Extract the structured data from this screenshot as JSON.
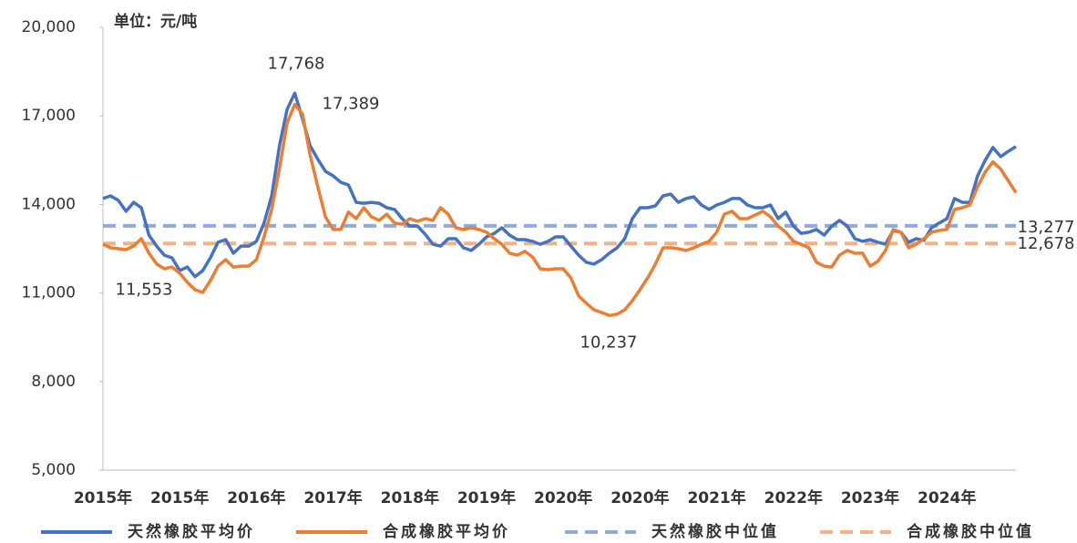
{
  "chart_data": {
    "type": "line",
    "subtitle": "单位：元/吨",
    "categories": [
      "2015年",
      null,
      null,
      null,
      null,
      null,
      null,
      null,
      null,
      null,
      "2015年",
      null,
      null,
      null,
      null,
      null,
      null,
      null,
      null,
      null,
      "2016年",
      null,
      null,
      null,
      null,
      null,
      null,
      null,
      null,
      null,
      "2017年",
      null,
      null,
      null,
      null,
      null,
      null,
      null,
      null,
      null,
      "2018年",
      null,
      null,
      null,
      null,
      null,
      null,
      null,
      null,
      null,
      "2019年",
      null,
      null,
      null,
      null,
      null,
      null,
      null,
      null,
      null,
      "2020年",
      null,
      null,
      null,
      null,
      null,
      null,
      null,
      null,
      null,
      "2020年",
      null,
      null,
      null,
      null,
      null,
      null,
      null,
      null,
      null,
      "2021年",
      null,
      null,
      null,
      null,
      null,
      null,
      null,
      null,
      null,
      "2022年",
      null,
      null,
      null,
      null,
      null,
      null,
      null,
      null,
      null,
      "2023年",
      null,
      null,
      null,
      null,
      null,
      null,
      null,
      null,
      null,
      "2024年",
      null,
      null,
      null,
      null,
      null,
      null,
      null,
      null,
      null
    ],
    "series": [
      {
        "name": "天然橡胶平均价",
        "color": "#4472c4",
        "values": [
          14200,
          14290,
          14140,
          13770,
          14070,
          13890,
          12960,
          12590,
          12280,
          12190,
          11760,
          11880,
          11553,
          11760,
          12190,
          12720,
          12810,
          12350,
          12590,
          12590,
          12750,
          13370,
          14290,
          15990,
          17220,
          17768,
          16910,
          15990,
          15530,
          15120,
          14970,
          14750,
          14660,
          14070,
          14040,
          14070,
          14040,
          13890,
          13830,
          13520,
          13270,
          13270,
          12990,
          12650,
          12590,
          12840,
          12840,
          12530,
          12440,
          12650,
          12900,
          13020,
          13210,
          12960,
          12810,
          12810,
          12750,
          12650,
          12750,
          12900,
          12900,
          12590,
          12280,
          12040,
          11980,
          12130,
          12350,
          12530,
          12840,
          13520,
          13890,
          13890,
          13950,
          14290,
          14350,
          14070,
          14200,
          14260,
          13980,
          13830,
          13980,
          14070,
          14200,
          14200,
          13980,
          13890,
          13890,
          13980,
          13520,
          13740,
          13270,
          13020,
          13060,
          13150,
          12960,
          13270,
          13460,
          13270,
          12840,
          12750,
          12810,
          12720,
          12650,
          13120,
          13060,
          12720,
          12840,
          12780,
          13210,
          13370,
          13520,
          14200,
          14070,
          14070,
          14970,
          15500,
          15930,
          15620,
          15800,
          15960
        ]
      },
      {
        "name": "合成橡胶平均价",
        "color": "#ed7d31",
        "values": [
          12650,
          12530,
          12500,
          12470,
          12590,
          12840,
          12350,
          11980,
          11820,
          11880,
          11670,
          11360,
          11110,
          11020,
          11420,
          11910,
          12130,
          11880,
          11910,
          11910,
          12130,
          12900,
          13830,
          15220,
          16760,
          17389,
          17070,
          15680,
          14600,
          13580,
          13150,
          13150,
          13740,
          13520,
          13890,
          13580,
          13460,
          13670,
          13370,
          13330,
          13520,
          13430,
          13520,
          13460,
          13890,
          13670,
          13210,
          13150,
          13210,
          13150,
          13060,
          12840,
          12650,
          12350,
          12280,
          12410,
          12220,
          11820,
          11790,
          11820,
          11820,
          11510,
          10900,
          10650,
          10430,
          10340,
          10237,
          10280,
          10430,
          10740,
          11110,
          11510,
          11980,
          12530,
          12530,
          12500,
          12440,
          12530,
          12650,
          12750,
          13060,
          13670,
          13770,
          13520,
          13520,
          13640,
          13770,
          13580,
          13270,
          13060,
          12750,
          12650,
          12530,
          12040,
          11910,
          11880,
          12280,
          12440,
          12350,
          12350,
          11910,
          12070,
          12440,
          13150,
          13060,
          12530,
          12650,
          12840,
          13060,
          13120,
          13150,
          13830,
          13890,
          13980,
          14600,
          15100,
          15440,
          15200,
          14800,
          14400
        ]
      }
    ],
    "reference_lines": [
      {
        "name": "天然橡胶中位值",
        "color": "#8faadc",
        "value": 13277
      },
      {
        "name": "合成橡胶中位值",
        "color": "#f4b183",
        "value": 12678
      }
    ],
    "annotations": [
      {
        "text": "17,768",
        "value": 17768
      },
      {
        "text": "17,389",
        "value": 17389
      },
      {
        "text": "11,553",
        "value": 11553
      },
      {
        "text": "10,237",
        "value": 10237
      },
      {
        "text": "13,277",
        "value": 13277
      },
      {
        "text": "12,678",
        "value": 12678
      }
    ],
    "ylim": [
      5000,
      20000
    ],
    "yticks": [
      {
        "value": 5000,
        "label": "5,000"
      },
      {
        "value": 8000,
        "label": "8,000"
      },
      {
        "value": 11000,
        "label": "11,000"
      },
      {
        "value": 14000,
        "label": "14,000"
      },
      {
        "value": 17000,
        "label": "17,000"
      },
      {
        "value": 20000,
        "label": "20,000"
      }
    ],
    "grid": false,
    "legend": "bottom"
  }
}
